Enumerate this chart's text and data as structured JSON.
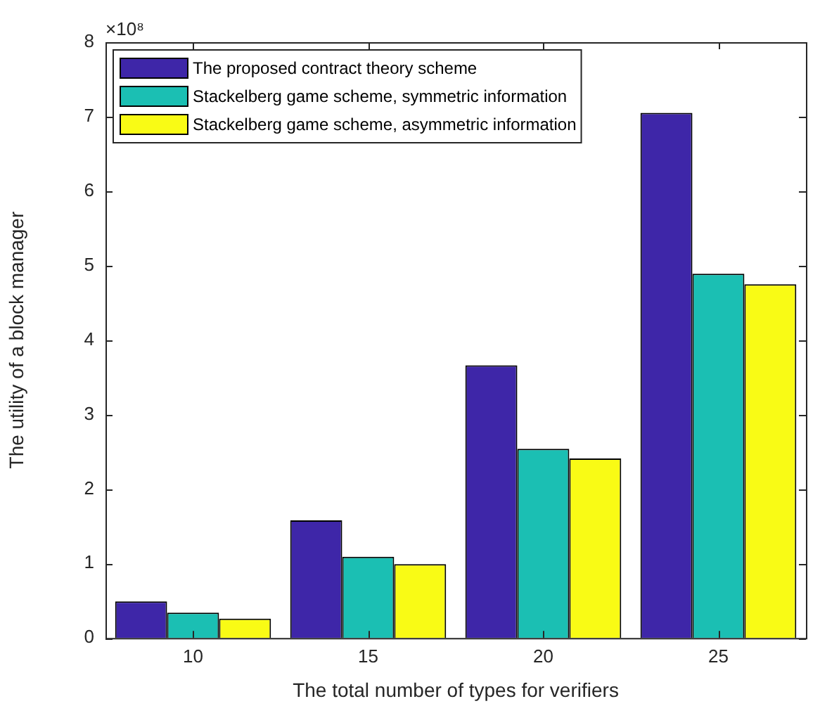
{
  "chart_data": {
    "type": "bar",
    "xlabel": "The total number of types for verifiers",
    "ylabel": "The utility of a block manager",
    "annotations": [
      "×10⁸"
    ],
    "categories": [
      "10",
      "15",
      "20",
      "25"
    ],
    "series": [
      {
        "name": "The proposed contract theory scheme",
        "color": "#3e26a8",
        "values": [
          0.49,
          1.58,
          3.66,
          7.05
        ]
      },
      {
        "name": "Stackelberg game scheme, symmetric information",
        "color": "#1bbfb3",
        "values": [
          0.34,
          1.09,
          2.54,
          4.89
        ]
      },
      {
        "name": "Stackelberg game scheme, asymmetric information",
        "color": "#f9fb15",
        "values": [
          0.26,
          0.99,
          2.41,
          4.75
        ]
      }
    ],
    "ylim": [
      0,
      8
    ],
    "yticks": [
      0,
      1,
      2,
      3,
      4,
      5,
      6,
      7,
      8
    ],
    "grid": false,
    "legend": "top left"
  }
}
